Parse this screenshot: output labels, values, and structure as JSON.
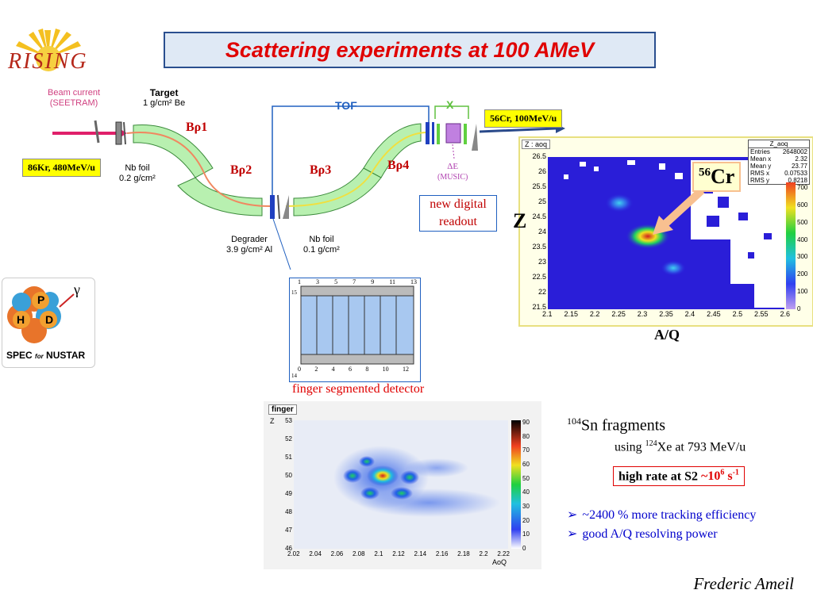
{
  "title": "Scattering experiments at 100 AMeV",
  "logo_rising": "RISING",
  "logo_prespec": {
    "label": "SPEC",
    "small": "for",
    "label2": "NUSTAR",
    "p": "P",
    "h": "H",
    "d": "D",
    "gamma": "γ"
  },
  "beamline": {
    "beam_current": "Beam current",
    "seetram": "(SEETRAM)",
    "target": "Target",
    "target_thickness": "1 g/cm² Be",
    "nb_foil1": "Nb foil",
    "nb_foil1_thickness": "0.2 g/cm²",
    "degrader": "Degrader",
    "degrader_thickness": "3.9 g/cm² Al",
    "nb_foil2": "Nb foil",
    "nb_foil2_thickness": "0.1 g/cm²",
    "tof": "TOF",
    "x": "X",
    "delta_e": "ΔE",
    "music": "(MUSIC)",
    "brho1": "Bρ1",
    "brho2": "Bρ2",
    "brho3": "Bρ3",
    "brho4": "Bρ4",
    "beam_in": "86Kr, 480MeV/u",
    "beam_out": "56Cr, 100MeV/u",
    "new_digital": "new digital",
    "readout": "readout"
  },
  "finger_detector": {
    "caption": "finger segmented detector",
    "top_numbers": [
      "1",
      "3",
      "5",
      "7",
      "9",
      "11",
      "13"
    ],
    "bottom_numbers": [
      "0",
      "2",
      "4",
      "6",
      "8",
      "10",
      "12"
    ],
    "left_top": "15",
    "left_bottom": "14"
  },
  "plot_top": {
    "title": "Z : aoq",
    "stats_title": "Z_aoq",
    "stats": [
      {
        "k": "Entries",
        "v": "2648002"
      },
      {
        "k": "Mean x",
        "v": "2.32"
      },
      {
        "k": "Mean y",
        "v": "23.77"
      },
      {
        "k": "RMS x",
        "v": "0.07533"
      },
      {
        "k": "RMS y",
        "v": "0.8218"
      }
    ],
    "ylabel": "Z",
    "xlabel": "A/Q",
    "annotation": "56Cr",
    "x_ticks": [
      "2.1",
      "2.15",
      "2.2",
      "2.25",
      "2.3",
      "2.35",
      "2.4",
      "2.45",
      "2.5",
      "2.55",
      "2.6"
    ],
    "y_ticks": [
      "21.5",
      "22",
      "22.5",
      "23",
      "23.5",
      "24",
      "24.5",
      "25",
      "25.5",
      "26",
      "26.5"
    ],
    "z_ticks": [
      "0",
      "100",
      "200",
      "300",
      "400",
      "500",
      "600",
      "700"
    ]
  },
  "plot_bottom": {
    "title": "finger",
    "ylabel": "Z",
    "xlabel": "AoQ",
    "x_ticks": [
      "2.02",
      "2.04",
      "2.06",
      "2.08",
      "2.1",
      "2.12",
      "2.14",
      "2.16",
      "2.18",
      "2.2",
      "2.22"
    ],
    "y_ticks": [
      "46",
      "47",
      "48",
      "49",
      "50",
      "51",
      "52",
      "53"
    ],
    "z_ticks": [
      "0",
      "10",
      "20",
      "30",
      "40",
      "50",
      "60",
      "70",
      "80",
      "90"
    ]
  },
  "sn": {
    "line1_sup": "104",
    "line1": "Sn fragments",
    "line2a": "using ",
    "line2_sup": "124",
    "line2b": "Xe at 793 MeV/u",
    "rate_a": "high rate at S2 ",
    "rate_b": "~10",
    "rate_sup": "6",
    "rate_c": " s",
    "rate_sup2": "-1"
  },
  "bullets": [
    "~2400 % more tracking efficiency",
    "good A/Q resolving power"
  ],
  "author": "Frederic Ameil",
  "colors": {
    "title_red": "#e00000",
    "magnet_green": "#b8f0b0",
    "bullet_blue": "#0000cc"
  }
}
